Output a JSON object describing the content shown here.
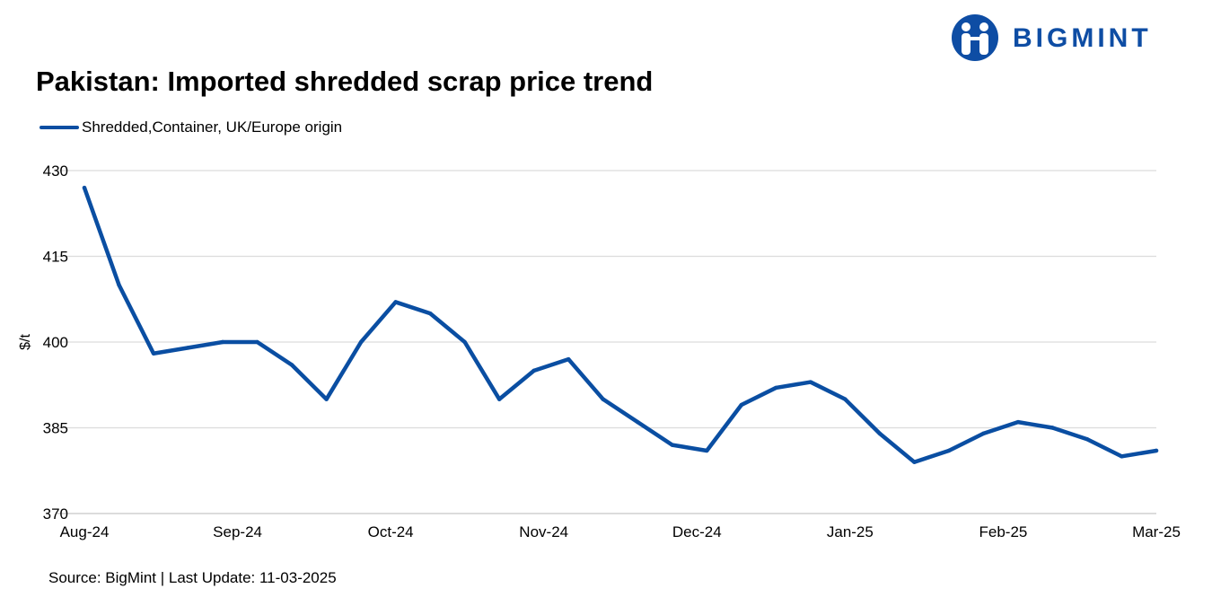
{
  "brand": {
    "name": "BIGMINT",
    "logo_icon": "people-circle-logo-icon",
    "color": "#0e4da4"
  },
  "title": "Pakistan: Imported shredded scrap price trend",
  "source": "Source: BigMint | Last Update: 11-03-2025",
  "chart_data": {
    "type": "line",
    "title": "Pakistan: Imported shredded scrap price trend",
    "xlabel": "",
    "ylabel": "$/t",
    "ylim": [
      370,
      430
    ],
    "yticks": [
      370,
      385,
      400,
      415,
      430
    ],
    "xtick_labels": [
      "Aug-24",
      "Sep-24",
      "Oct-24",
      "Nov-24",
      "Dec-24",
      "Jan-25",
      "Feb-25",
      "Mar-25"
    ],
    "grid": "horizontal",
    "legend_position": "top-left",
    "series": [
      {
        "name": "Shredded,Container, UK/Europe origin",
        "color": "#0a4ea2",
        "values": [
          427,
          410,
          398,
          399,
          400,
          400,
          396,
          390,
          400,
          407,
          405,
          400,
          390,
          395,
          397,
          390,
          386,
          382,
          381,
          389,
          392,
          393,
          390,
          384,
          379,
          381,
          384,
          386,
          385,
          383,
          380,
          381
        ]
      }
    ]
  }
}
